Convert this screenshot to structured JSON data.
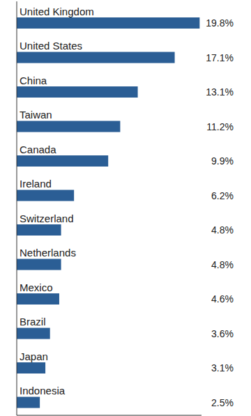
{
  "chart_data": {
    "type": "bar",
    "orientation": "horizontal",
    "categories": [
      "United Kingdom",
      "United States",
      "China",
      "Taiwan",
      "Canada",
      "Ireland",
      "Switzerland",
      "Netherlands",
      "Mexico",
      "Brazil",
      "Japan",
      "Indonesia"
    ],
    "values": [
      19.8,
      17.1,
      13.1,
      11.2,
      9.9,
      6.2,
      4.8,
      4.8,
      4.6,
      3.6,
      3.1,
      2.5
    ],
    "value_labels": [
      "19.8%",
      "17.1%",
      "13.1%",
      "11.2%",
      "9.9%",
      "6.2%",
      "4.8%",
      "4.8%",
      "4.6%",
      "3.6%",
      "3.1%",
      "2.5%"
    ],
    "color": "#2b5e95",
    "xlim": [
      0,
      20
    ],
    "data_labels": true,
    "tick_labels": "y",
    "grid": false
  }
}
